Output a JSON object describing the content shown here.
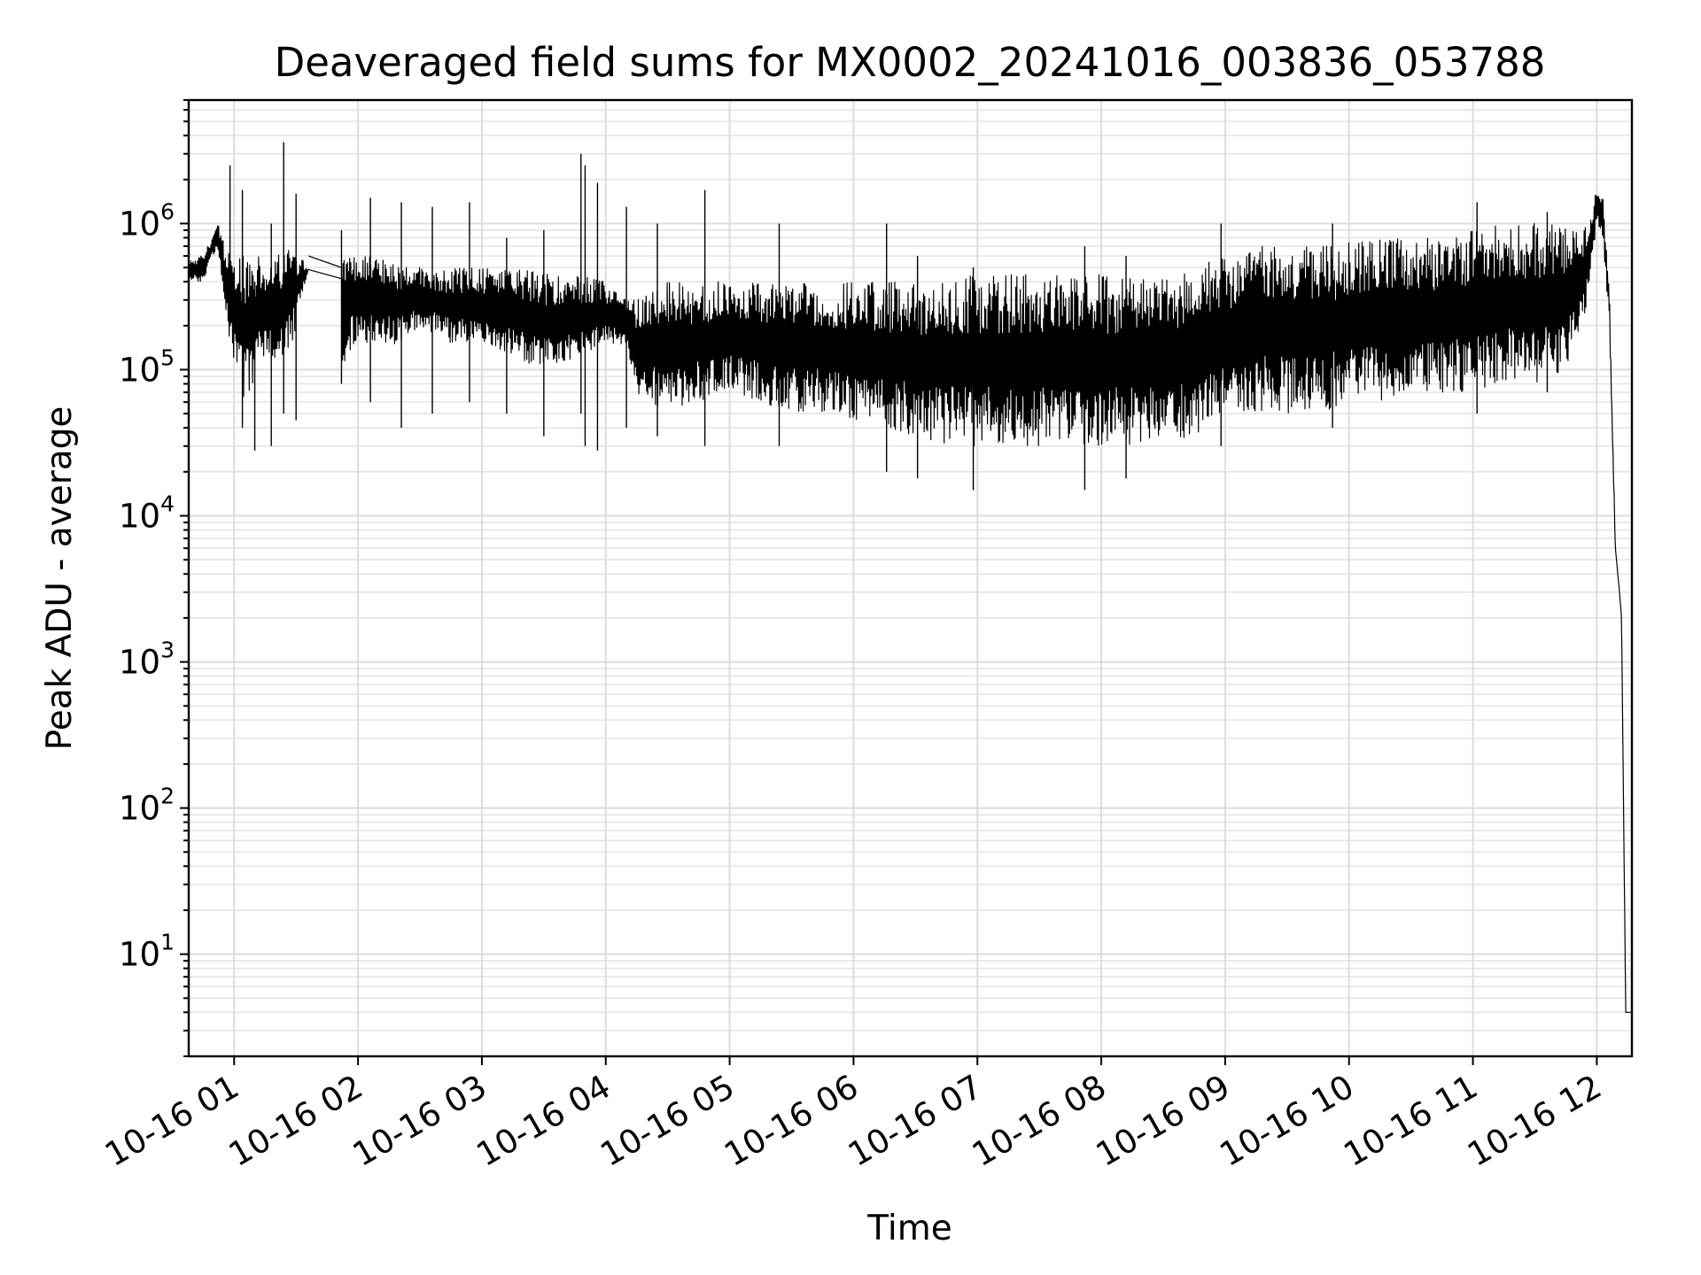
{
  "chart_data": {
    "type": "line",
    "title": "Deaveraged field sums for MX0002_20241016_003836_053788",
    "xlabel": "Time",
    "ylabel": "Peak ADU - average",
    "yscale": "log",
    "grid": "major and minor",
    "legend": "none",
    "line_color": "#000000",
    "x_ticks": [
      "10-16 01",
      "10-16 02",
      "10-16 03",
      "10-16 04",
      "10-16 05",
      "10-16 06",
      "10-16 07",
      "10-16 08",
      "10-16 09",
      "10-16 10",
      "10-16 11",
      "10-16 12"
    ],
    "y_ticks": [
      {
        "base": "10",
        "exp": "1"
      },
      {
        "base": "10",
        "exp": "2"
      },
      {
        "base": "10",
        "exp": "3"
      },
      {
        "base": "10",
        "exp": "4"
      },
      {
        "base": "10",
        "exp": "5"
      },
      {
        "base": "10",
        "exp": "6"
      }
    ],
    "xlim": [
      "2024-10-16 00:38",
      "2024-10-16 12:17"
    ],
    "ylim": [
      2,
      7000000
    ],
    "series": [
      {
        "x": [
          "2024-10-16 00:38",
          "2024-10-16 00:45",
          "2024-10-16 00:52",
          "2024-10-16 00:55",
          "2024-10-16 01:00",
          "2024-10-16 01:05",
          "2024-10-16 01:12",
          "2024-10-16 01:20",
          "2024-10-16 01:28",
          "2024-10-16 01:36",
          "2024-10-16 01:52",
          "2024-10-16 01:58",
          "2024-10-16 02:10",
          "2024-10-16 02:20",
          "2024-10-16 02:30",
          "2024-10-16 02:45",
          "2024-10-16 03:00",
          "2024-10-16 03:15",
          "2024-10-16 03:30",
          "2024-10-16 03:45",
          "2024-10-16 04:00",
          "2024-10-16 04:10",
          "2024-10-16 04:15",
          "2024-10-16 04:30",
          "2024-10-16 04:45",
          "2024-10-16 05:00",
          "2024-10-16 05:15",
          "2024-10-16 05:30",
          "2024-10-16 05:45",
          "2024-10-16 06:00",
          "2024-10-16 06:15",
          "2024-10-16 06:30",
          "2024-10-16 06:45",
          "2024-10-16 07:00",
          "2024-10-16 07:15",
          "2024-10-16 07:30",
          "2024-10-16 07:45",
          "2024-10-16 08:00",
          "2024-10-16 08:15",
          "2024-10-16 08:30",
          "2024-10-16 08:45",
          "2024-10-16 09:00",
          "2024-10-16 09:15",
          "2024-10-16 09:30",
          "2024-10-16 09:45",
          "2024-10-16 10:00",
          "2024-10-16 10:15",
          "2024-10-16 10:30",
          "2024-10-16 10:45",
          "2024-10-16 11:00",
          "2024-10-16 11:15",
          "2024-10-16 11:30",
          "2024-10-16 11:45",
          "2024-10-16 11:55",
          "2024-10-16 12:00",
          "2024-10-16 12:03",
          "2024-10-16 12:06",
          "2024-10-16 12:09",
          "2024-10-16 12:11",
          "2024-10-16 12:12",
          "2024-10-16 12:14",
          "2024-10-16 12:17"
        ],
        "lo": [
          400000,
          400000,
          700000,
          300000,
          100000,
          60000,
          100000,
          100000,
          150000,
          500000,
          100000,
          150000,
          150000,
          150000,
          200000,
          150000,
          150000,
          120000,
          100000,
          120000,
          150000,
          150000,
          70000,
          50000,
          60000,
          70000,
          60000,
          50000,
          50000,
          45000,
          40000,
          35000,
          30000,
          30000,
          30000,
          30000,
          30000,
          30000,
          30000,
          30000,
          35000,
          50000,
          50000,
          50000,
          50000,
          60000,
          60000,
          70000,
          70000,
          70000,
          80000,
          80000,
          100000,
          250000,
          1000000,
          800000,
          200000,
          6000,
          3000,
          2000,
          4,
          4
        ],
        "hi": [
          600000,
          600000,
          1000000,
          800000,
          600000,
          600000,
          600000,
          600000,
          700000,
          500000,
          600000,
          600000,
          600000,
          500000,
          500000,
          500000,
          500000,
          500000,
          450000,
          450000,
          400000,
          300000,
          300000,
          400000,
          400000,
          400000,
          400000,
          400000,
          400000,
          400000,
          400000,
          400000,
          450000,
          450000,
          450000,
          450000,
          450000,
          450000,
          450000,
          450000,
          500000,
          600000,
          700000,
          700000,
          700000,
          750000,
          800000,
          800000,
          800000,
          900000,
          1000000,
          1000000,
          1000000,
          1000000,
          1700000,
          1500000,
          400000,
          6000,
          3000,
          2000,
          4,
          4
        ]
      }
    ],
    "spikes": [
      {
        "x": "2024-10-16 00:58",
        "peak": 2500000,
        "dip": 300000
      },
      {
        "x": "2024-10-16 01:04",
        "peak": 1700000,
        "dip": 40000
      },
      {
        "x": "2024-10-16 01:10",
        "peak": 400000,
        "dip": 28000
      },
      {
        "x": "2024-10-16 01:18",
        "peak": 1000000,
        "dip": 30000
      },
      {
        "x": "2024-10-16 01:24",
        "peak": 3600000,
        "dip": 50000
      },
      {
        "x": "2024-10-16 01:30",
        "peak": 1600000,
        "dip": 45000
      },
      {
        "x": "2024-10-16 01:52",
        "peak": 900000,
        "dip": 80000
      },
      {
        "x": "2024-10-16 02:06",
        "peak": 1500000,
        "dip": 60000
      },
      {
        "x": "2024-10-16 02:21",
        "peak": 1400000,
        "dip": 40000
      },
      {
        "x": "2024-10-16 02:36",
        "peak": 1300000,
        "dip": 50000
      },
      {
        "x": "2024-10-16 02:54",
        "peak": 1400000,
        "dip": 60000
      },
      {
        "x": "2024-10-16 03:12",
        "peak": 800000,
        "dip": 50000
      },
      {
        "x": "2024-10-16 03:30",
        "peak": 900000,
        "dip": 35000
      },
      {
        "x": "2024-10-16 03:48",
        "peak": 3000000,
        "dip": 50000
      },
      {
        "x": "2024-10-16 03:50",
        "peak": 2500000,
        "dip": 30000
      },
      {
        "x": "2024-10-16 03:56",
        "peak": 1900000,
        "dip": 28000
      },
      {
        "x": "2024-10-16 04:10",
        "peak": 1300000,
        "dip": 40000
      },
      {
        "x": "2024-10-16 04:25",
        "peak": 1000000,
        "dip": 35000
      },
      {
        "x": "2024-10-16 04:48",
        "peak": 1700000,
        "dip": 30000
      },
      {
        "x": "2024-10-16 05:24",
        "peak": 1000000,
        "dip": 30000
      },
      {
        "x": "2024-10-16 06:16",
        "peak": 1000000,
        "dip": 20000
      },
      {
        "x": "2024-10-16 06:31",
        "peak": 600000,
        "dip": 18000
      },
      {
        "x": "2024-10-16 06:58",
        "peak": 500000,
        "dip": 15000
      },
      {
        "x": "2024-10-16 07:52",
        "peak": 700000,
        "dip": 15000
      },
      {
        "x": "2024-10-16 08:12",
        "peak": 600000,
        "dip": 18000
      },
      {
        "x": "2024-10-16 08:58",
        "peak": 1000000,
        "dip": 30000
      },
      {
        "x": "2024-10-16 09:52",
        "peak": 1000000,
        "dip": 40000
      },
      {
        "x": "2024-10-16 11:02",
        "peak": 1400000,
        "dip": 50000
      },
      {
        "x": "2024-10-16 11:36",
        "peak": 1200000,
        "dip": 70000
      }
    ],
    "gap": {
      "from": "2024-10-16 01:36",
      "to": "2024-10-16 01:52",
      "values": [
        600000,
        500000
      ]
    }
  }
}
